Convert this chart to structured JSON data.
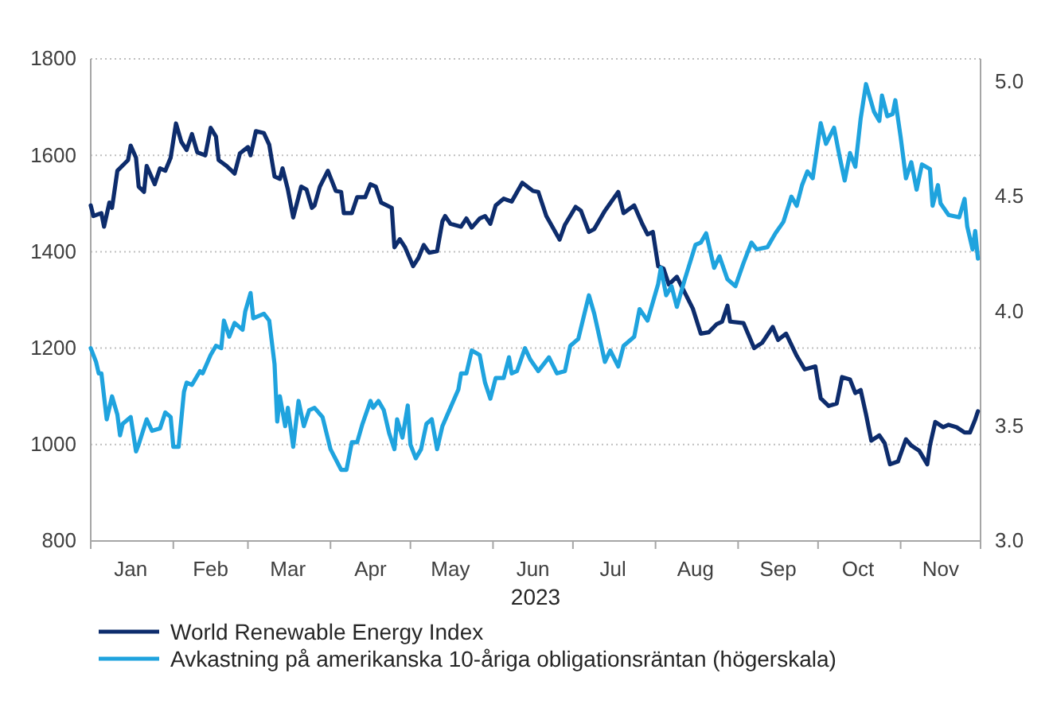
{
  "chart_data": {
    "type": "line",
    "xlabel": "2023",
    "legend": "bottom",
    "grid": "y",
    "line_style": "solid",
    "marker": "none",
    "xlim": [
      "2023-01-01",
      "2023-12-01"
    ],
    "xticks": [
      {
        "value": "2023-01-01",
        "label": null
      },
      {
        "value": "2023-01-16",
        "label": "Jan"
      },
      {
        "value": "2023-02-01",
        "label": null
      },
      {
        "value": "2023-02-15",
        "label": "Feb"
      },
      {
        "value": "2023-03-01",
        "label": null
      },
      {
        "value": "2023-03-16",
        "label": "Mar"
      },
      {
        "value": "2023-04-01",
        "label": null
      },
      {
        "value": "2023-04-16",
        "label": "Apr"
      },
      {
        "value": "2023-05-01",
        "label": null
      },
      {
        "value": "2023-05-16",
        "label": "May"
      },
      {
        "value": "2023-06-01",
        "label": null
      },
      {
        "value": "2023-06-16",
        "label": "Jun"
      },
      {
        "value": "2023-07-01",
        "label": null
      },
      {
        "value": "2023-07-16",
        "label": "Jul"
      },
      {
        "value": "2023-08-01",
        "label": null
      },
      {
        "value": "2023-08-16",
        "label": "Aug"
      },
      {
        "value": "2023-09-01",
        "label": null
      },
      {
        "value": "2023-09-16",
        "label": "Sep"
      },
      {
        "value": "2023-10-01",
        "label": null
      },
      {
        "value": "2023-10-16",
        "label": "Oct"
      },
      {
        "value": "2023-11-01",
        "label": null
      },
      {
        "value": "2023-11-16",
        "label": "Nov"
      },
      {
        "value": "2023-12-01",
        "label": null
      }
    ],
    "ylim": [
      800,
      1800
    ],
    "yticks": [
      800,
      1000,
      1200,
      1400,
      1600,
      1800
    ],
    "y2lim": [
      3.0,
      5.1
    ],
    "y2ticks": [
      {
        "value": 3.0,
        "label": "3.0"
      },
      {
        "value": 3.5,
        "label": "3.5"
      },
      {
        "value": 4.0,
        "label": "4.0"
      },
      {
        "value": 4.5,
        "label": "4.5"
      },
      {
        "value": 5.0,
        "label": "5.0"
      }
    ],
    "series": [
      {
        "name": "World Renewable Energy Index",
        "color": "#0d2c6c",
        "x": [
          "2023-01-01",
          "2023-01-02",
          "2023-01-05",
          "2023-01-06",
          "2023-01-08",
          "2023-01-09",
          "2023-01-11",
          "2023-01-15",
          "2023-01-16",
          "2023-01-18",
          "2023-01-19",
          "2023-01-21",
          "2023-01-22",
          "2023-01-25",
          "2023-01-27",
          "2023-01-29",
          "2023-01-31",
          "2023-02-02",
          "2023-02-04",
          "2023-02-06",
          "2023-02-08",
          "2023-02-10",
          "2023-02-13",
          "2023-02-15",
          "2023-02-17",
          "2023-02-18",
          "2023-02-21",
          "2023-02-24",
          "2023-02-26",
          "2023-03-01",
          "2023-03-02",
          "2023-03-04",
          "2023-03-07",
          "2023-03-09",
          "2023-03-11",
          "2023-03-13",
          "2023-03-14",
          "2023-03-16",
          "2023-03-18",
          "2023-03-21",
          "2023-03-23",
          "2023-03-25",
          "2023-03-26",
          "2023-03-28",
          "2023-03-31",
          "2023-04-03",
          "2023-04-05",
          "2023-04-06",
          "2023-04-09",
          "2023-04-11",
          "2023-04-14",
          "2023-04-16",
          "2023-04-18",
          "2023-04-20",
          "2023-04-24",
          "2023-04-25",
          "2023-04-27",
          "2023-04-29",
          "2023-05-02",
          "2023-05-04",
          "2023-05-06",
          "2023-05-08",
          "2023-05-11",
          "2023-05-13",
          "2023-05-14",
          "2023-05-16",
          "2023-05-20",
          "2023-05-22",
          "2023-05-24",
          "2023-05-27",
          "2023-05-29",
          "2023-05-31",
          "2023-06-02",
          "2023-06-05",
          "2023-06-08",
          "2023-06-12",
          "2023-06-16",
          "2023-06-18",
          "2023-06-21",
          "2023-06-26",
          "2023-06-28",
          "2023-07-02",
          "2023-07-04",
          "2023-07-07",
          "2023-07-09",
          "2023-07-13",
          "2023-07-18",
          "2023-07-20",
          "2023-07-24",
          "2023-07-27",
          "2023-07-29",
          "2023-07-31",
          "2023-08-02",
          "2023-08-04",
          "2023-08-06",
          "2023-08-09",
          "2023-08-12",
          "2023-08-15",
          "2023-08-18",
          "2023-08-21",
          "2023-08-24",
          "2023-08-26",
          "2023-08-28",
          "2023-08-29",
          "2023-09-03",
          "2023-09-07",
          "2023-09-10",
          "2023-09-14",
          "2023-09-16",
          "2023-09-19",
          "2023-09-23",
          "2023-09-26",
          "2023-09-30",
          "2023-10-02",
          "2023-10-05",
          "2023-10-08",
          "2023-10-10",
          "2023-10-13",
          "2023-10-15",
          "2023-10-17",
          "2023-10-19",
          "2023-10-21",
          "2023-10-24",
          "2023-10-26",
          "2023-10-28",
          "2023-10-31",
          "2023-11-03",
          "2023-11-05",
          "2023-11-08",
          "2023-11-11",
          "2023-11-12",
          "2023-11-14",
          "2023-11-17",
          "2023-11-19",
          "2023-11-22",
          "2023-11-25",
          "2023-11-27",
          "2023-11-29",
          "2023-11-30"
        ],
        "values": [
          1496,
          1474,
          1480,
          1452,
          1502,
          1491,
          1568,
          1590,
          1620,
          1595,
          1535,
          1524,
          1578,
          1540,
          1573,
          1568,
          1595,
          1666,
          1628,
          1611,
          1644,
          1606,
          1600,
          1657,
          1639,
          1590,
          1578,
          1562,
          1604,
          1617,
          1600,
          1650,
          1646,
          1622,
          1556,
          1551,
          1573,
          1529,
          1471,
          1535,
          1529,
          1491,
          1496,
          1535,
          1568,
          1526,
          1524,
          1480,
          1480,
          1513,
          1513,
          1540,
          1535,
          1502,
          1491,
          1409,
          1426,
          1409,
          1370,
          1387,
          1414,
          1398,
          1401,
          1463,
          1474,
          1458,
          1452,
          1469,
          1450,
          1469,
          1474,
          1458,
          1496,
          1510,
          1504,
          1543,
          1526,
          1524,
          1474,
          1425,
          1456,
          1493,
          1485,
          1441,
          1447,
          1485,
          1524,
          1480,
          1496,
          1458,
          1436,
          1441,
          1370,
          1365,
          1332,
          1348,
          1315,
          1282,
          1230,
          1233,
          1250,
          1255,
          1288,
          1255,
          1252,
          1200,
          1211,
          1244,
          1217,
          1230,
          1184,
          1156,
          1162,
          1096,
          1080,
          1085,
          1140,
          1135,
          1107,
          1113,
          1063,
          1008,
          1019,
          1003,
          959,
          965,
          1011,
          998,
          987,
          959,
          998,
          1047,
          1036,
          1041,
          1036,
          1025,
          1025,
          1052,
          1069
        ]
      },
      {
        "name": "Avkastning på amerikanska 10-åriga obligationsräntan (högerskala)",
        "color": "#1fa3de",
        "axis": "y2",
        "x": [
          "2023-01-01",
          "2023-01-03",
          "2023-01-04",
          "2023-01-05",
          "2023-01-06",
          "2023-01-07",
          "2023-01-09",
          "2023-01-11",
          "2023-01-12",
          "2023-01-13",
          "2023-01-16",
          "2023-01-18",
          "2023-01-19",
          "2023-01-22",
          "2023-01-24",
          "2023-01-27",
          "2023-01-29",
          "2023-01-31",
          "2023-02-01",
          "2023-02-03",
          "2023-02-05",
          "2023-02-06",
          "2023-02-08",
          "2023-02-11",
          "2023-02-12",
          "2023-02-15",
          "2023-02-17",
          "2023-02-19",
          "2023-02-20",
          "2023-02-22",
          "2023-02-24",
          "2023-02-27",
          "2023-02-28",
          "2023-03-02",
          "2023-03-03",
          "2023-03-07",
          "2023-03-09",
          "2023-03-11",
          "2023-03-12",
          "2023-03-13",
          "2023-03-15",
          "2023-03-16",
          "2023-03-18",
          "2023-03-20",
          "2023-03-22",
          "2023-03-24",
          "2023-03-26",
          "2023-03-29",
          "2023-04-01",
          "2023-04-05",
          "2023-04-07",
          "2023-04-09",
          "2023-04-11",
          "2023-04-13",
          "2023-04-16",
          "2023-04-17",
          "2023-04-19",
          "2023-04-21",
          "2023-04-23",
          "2023-04-25",
          "2023-04-26",
          "2023-04-28",
          "2023-04-30",
          "2023-05-01",
          "2023-05-03",
          "2023-05-05",
          "2023-05-07",
          "2023-05-09",
          "2023-05-11",
          "2023-05-13",
          "2023-05-16",
          "2023-05-19",
          "2023-05-20",
          "2023-05-22",
          "2023-05-24",
          "2023-05-27",
          "2023-05-29",
          "2023-05-31",
          "2023-06-02",
          "2023-06-05",
          "2023-06-07",
          "2023-06-08",
          "2023-06-10",
          "2023-06-13",
          "2023-06-15",
          "2023-06-18",
          "2023-06-22",
          "2023-06-25",
          "2023-06-28",
          "2023-06-30",
          "2023-07-03",
          "2023-07-07",
          "2023-07-09",
          "2023-07-13",
          "2023-07-15",
          "2023-07-18",
          "2023-07-20",
          "2023-07-24",
          "2023-07-26",
          "2023-07-29",
          "2023-08-02",
          "2023-08-03",
          "2023-08-05",
          "2023-08-07",
          "2023-08-09",
          "2023-08-12",
          "2023-08-16",
          "2023-08-18",
          "2023-08-20",
          "2023-08-23",
          "2023-08-25",
          "2023-08-28",
          "2023-08-31",
          "2023-09-03",
          "2023-09-06",
          "2023-09-08",
          "2023-09-12",
          "2023-09-15",
          "2023-09-18",
          "2023-09-21",
          "2023-09-23",
          "2023-09-25",
          "2023-09-27",
          "2023-09-29",
          "2023-10-02",
          "2023-10-04",
          "2023-10-07",
          "2023-10-09",
          "2023-10-11",
          "2023-10-13",
          "2023-10-15",
          "2023-10-17",
          "2023-10-19",
          "2023-10-22",
          "2023-10-24",
          "2023-10-25",
          "2023-10-27",
          "2023-10-29",
          "2023-10-30",
          "2023-11-01",
          "2023-11-03",
          "2023-11-05",
          "2023-11-07",
          "2023-11-09",
          "2023-11-12",
          "2023-11-13",
          "2023-11-15",
          "2023-11-16",
          "2023-11-19",
          "2023-11-23",
          "2023-11-25",
          "2023-11-26",
          "2023-11-28",
          "2023-11-29",
          "2023-11-30"
        ],
        "values": [
          3.84,
          3.78,
          3.73,
          3.73,
          3.63,
          3.53,
          3.63,
          3.55,
          3.46,
          3.51,
          3.54,
          3.39,
          3.42,
          3.53,
          3.48,
          3.49,
          3.56,
          3.54,
          3.41,
          3.41,
          3.65,
          3.69,
          3.68,
          3.74,
          3.73,
          3.81,
          3.85,
          3.84,
          3.96,
          3.89,
          3.95,
          3.92,
          4.0,
          4.08,
          3.97,
          3.99,
          3.96,
          3.77,
          3.52,
          3.63,
          3.5,
          3.58,
          3.41,
          3.61,
          3.5,
          3.57,
          3.58,
          3.54,
          3.4,
          3.31,
          3.31,
          3.43,
          3.43,
          3.51,
          3.61,
          3.58,
          3.61,
          3.57,
          3.47,
          3.4,
          3.53,
          3.45,
          3.59,
          3.42,
          3.36,
          3.4,
          3.51,
          3.53,
          3.4,
          3.5,
          3.58,
          3.66,
          3.73,
          3.73,
          3.83,
          3.81,
          3.69,
          3.62,
          3.71,
          3.71,
          3.8,
          3.73,
          3.74,
          3.84,
          3.79,
          3.74,
          3.8,
          3.73,
          3.74,
          3.85,
          3.88,
          4.07,
          3.99,
          3.78,
          3.83,
          3.76,
          3.85,
          3.89,
          4.01,
          3.96,
          4.12,
          4.19,
          4.07,
          4.11,
          4.02,
          4.14,
          4.29,
          4.3,
          4.34,
          4.19,
          4.24,
          4.14,
          4.11,
          4.21,
          4.3,
          4.27,
          4.28,
          4.34,
          4.39,
          4.5,
          4.46,
          4.55,
          4.61,
          4.58,
          4.82,
          4.73,
          4.8,
          4.68,
          4.57,
          4.69,
          4.63,
          4.84,
          4.99,
          4.87,
          4.83,
          4.94,
          4.85,
          4.86,
          4.92,
          4.76,
          4.58,
          4.65,
          4.53,
          4.64,
          4.62,
          4.46,
          4.55,
          4.47,
          4.42,
          4.41,
          4.49,
          4.37,
          4.27,
          4.35,
          4.23
        ]
      }
    ]
  }
}
